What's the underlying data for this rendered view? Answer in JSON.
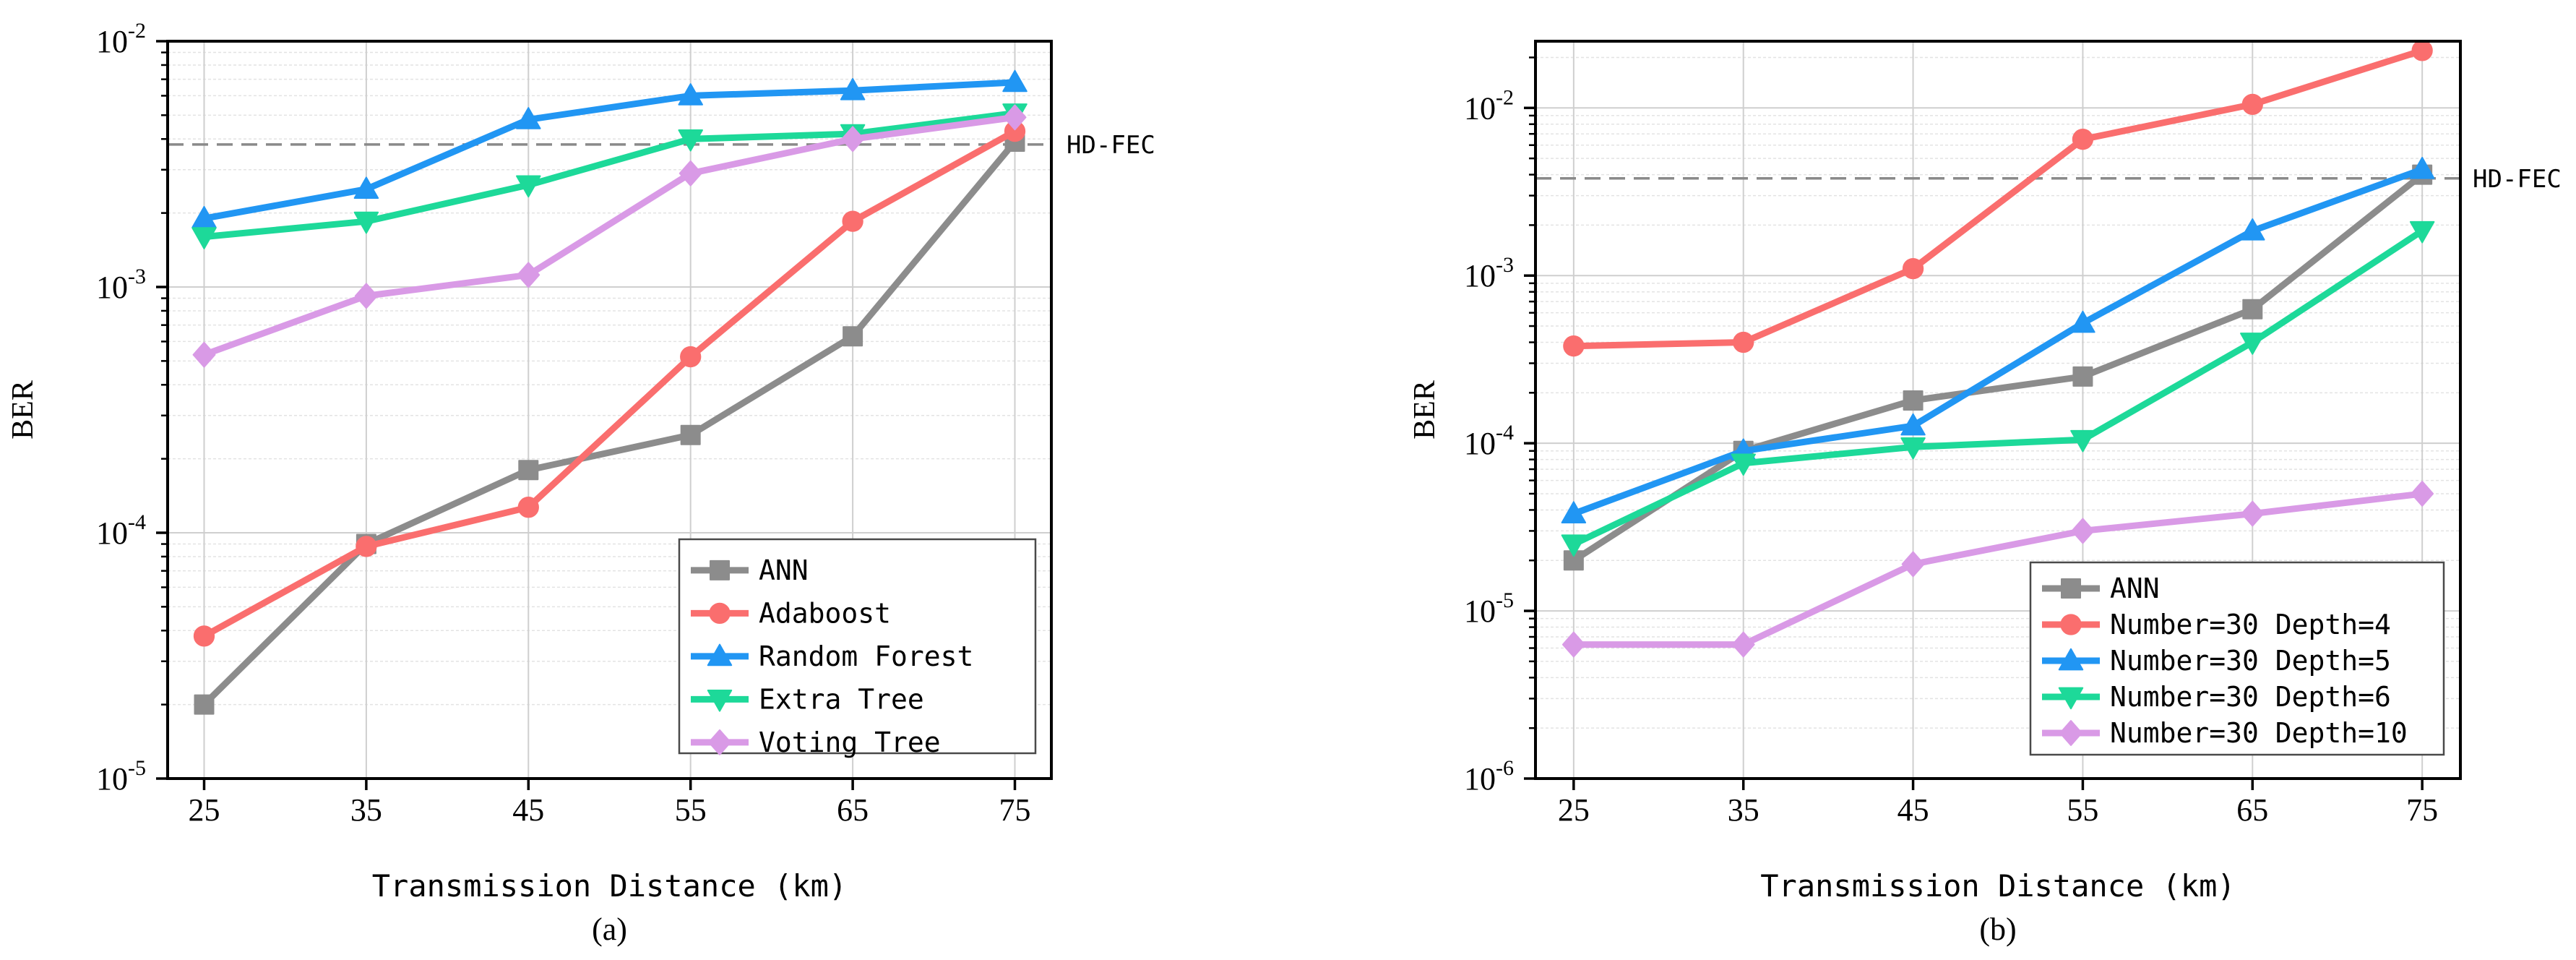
{
  "chart_data": [
    {
      "type": "line",
      "panel_label": "(a)",
      "xlabel": "Transmission Distance (km)",
      "ylabel": "BER",
      "yscale": "log",
      "x": [
        25,
        35,
        45,
        55,
        65,
        75
      ],
      "xticks": [
        "25",
        "35",
        "45",
        "55",
        "65",
        "75"
      ],
      "ylim": [
        1e-05,
        0.01
      ],
      "yticks": [
        {
          "base": "10",
          "exp": "-5",
          "value": 1e-05
        },
        {
          "base": "10",
          "exp": "-4",
          "value": 0.0001
        },
        {
          "base": "10",
          "exp": "-3",
          "value": 0.001
        },
        {
          "base": "10",
          "exp": "-2",
          "value": 0.01
        }
      ],
      "threshold": {
        "label": "HD-FEC",
        "value": 0.0038
      },
      "legend_position": "lower-right",
      "series": [
        {
          "name": "ANN",
          "color": "#8c8c8c",
          "marker": "square",
          "values": [
            2e-05,
            9e-05,
            0.00018,
            0.00025,
            0.00063,
            0.0039
          ]
        },
        {
          "name": "Adaboost",
          "color": "#fa6e6e",
          "marker": "circle",
          "values": [
            3.8e-05,
            8.8e-05,
            0.000127,
            0.00052,
            0.00185,
            0.0043
          ]
        },
        {
          "name": "Random Forest",
          "color": "#2196f3",
          "marker": "triangle-up",
          "values": [
            0.0019,
            0.0025,
            0.0048,
            0.006,
            0.0063,
            0.0068
          ]
        },
        {
          "name": "Extra Tree",
          "color": "#1dd999",
          "marker": "triangle-down",
          "values": [
            0.0016,
            0.00185,
            0.0026,
            0.004,
            0.0042,
            0.0051
          ]
        },
        {
          "name": "Voting Tree",
          "color": "#d99ae6",
          "marker": "diamond",
          "values": [
            0.00053,
            0.00092,
            0.00112,
            0.0029,
            0.004,
            0.0049
          ]
        }
      ]
    },
    {
      "type": "line",
      "panel_label": "(b)",
      "xlabel": "Transmission Distance (km)",
      "ylabel": "BER",
      "yscale": "log",
      "x": [
        25,
        35,
        45,
        55,
        65,
        75
      ],
      "xticks": [
        "25",
        "35",
        "45",
        "55",
        "65",
        "75"
      ],
      "ylim": [
        1e-06,
        0.025
      ],
      "yticks": [
        {
          "base": "10",
          "exp": "-6",
          "value": 1e-06
        },
        {
          "base": "10",
          "exp": "-5",
          "value": 1e-05
        },
        {
          "base": "10",
          "exp": "-4",
          "value": 0.0001
        },
        {
          "base": "10",
          "exp": "-3",
          "value": 0.001
        },
        {
          "base": "10",
          "exp": "-2",
          "value": 0.01
        }
      ],
      "threshold": {
        "label": "HD-FEC",
        "value": 0.0038
      },
      "legend_position": "lower-right",
      "series": [
        {
          "name": "ANN",
          "color": "#8c8c8c",
          "marker": "square",
          "values": [
            2e-05,
            9e-05,
            0.00018,
            0.00025,
            0.00063,
            0.004
          ]
        },
        {
          "name": "Number=30 Depth=4",
          "color": "#fa6e6e",
          "marker": "circle",
          "values": [
            0.00038,
            0.0004,
            0.0011,
            0.0065,
            0.0105,
            0.022
          ]
        },
        {
          "name": "Number=30 Depth=5",
          "color": "#2196f3",
          "marker": "triangle-up",
          "values": [
            3.8e-05,
            9e-05,
            0.000127,
            0.00052,
            0.00185,
            0.0043
          ]
        },
        {
          "name": "Number=30 Depth=6",
          "color": "#1dd999",
          "marker": "triangle-down",
          "values": [
            2.5e-05,
            7.6e-05,
            9.5e-05,
            0.000105,
            0.0004,
            0.00185
          ]
        },
        {
          "name": "Number=30 Depth=10",
          "color": "#d99ae6",
          "marker": "diamond",
          "values": [
            6.3e-06,
            6.3e-06,
            1.9e-05,
            3e-05,
            3.8e-05,
            5e-05
          ]
        }
      ]
    }
  ]
}
